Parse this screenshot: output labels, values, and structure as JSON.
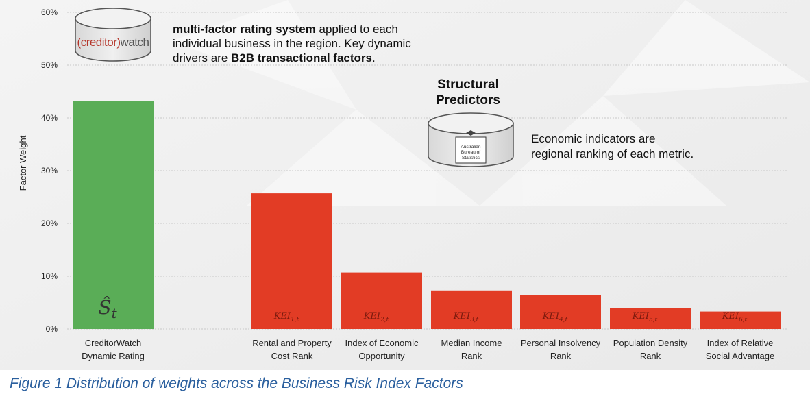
{
  "chart_data": {
    "type": "bar",
    "ylabel": "Factor Weight",
    "ylim": [
      0,
      60
    ],
    "yticks": [
      "0%",
      "10%",
      "20%",
      "30%",
      "40%",
      "50%",
      "60%"
    ],
    "grid": true,
    "categories": [
      "CreditorWatch Dynamic Rating",
      "Rental and Property Cost Rank",
      "Index of Economic Opportunity",
      "Median Income Rank",
      "Personal Insolvency Rank",
      "Population Density Rank",
      "Index of Relative Social Advantage"
    ],
    "category_lines": [
      [
        "CreditorWatch",
        "Dynamic Rating"
      ],
      [
        "Rental and Property",
        "Cost Rank"
      ],
      [
        "Index of Economic",
        "Opportunity"
      ],
      [
        "Median Income",
        "Rank"
      ],
      [
        "Personal Insolvency",
        "Rank"
      ],
      [
        "Population Density",
        "Rank"
      ],
      [
        "Index of Relative",
        "Social Advantage"
      ]
    ],
    "values": [
      43.2,
      25.7,
      10.7,
      7.3,
      6.4,
      3.9,
      3.3
    ],
    "bar_labels": [
      {
        "base": "Ŝ",
        "sub": "t"
      },
      {
        "base": "KEI",
        "sub": "1,t"
      },
      {
        "base": "KEI",
        "sub": "2,t"
      },
      {
        "base": "KEI",
        "sub": "3,t"
      },
      {
        "base": "KEI",
        "sub": "4,t"
      },
      {
        "base": "KEI",
        "sub": "5,t"
      },
      {
        "base": "KEI",
        "sub": "6,t"
      }
    ],
    "colors": [
      "#5aad57",
      "#e23c25",
      "#e23c25",
      "#e23c25",
      "#e23c25",
      "#e23c25",
      "#e23c25"
    ]
  },
  "annotations": {
    "creditorwatch_logo": {
      "left": "(creditor)",
      "right": "watch"
    },
    "creditorwatch_note": {
      "line1_bold": "multi-factor rating system",
      "line1_rest": " applied to each",
      "line2": "individual business in the region. Key dynamic",
      "line3_pre": "drivers are ",
      "line3_bold": "B2B transactional factors",
      "line3_post": "."
    },
    "structural_title_line1": "Structural",
    "structural_title_line2": "Predictors",
    "abs_logo_lines": [
      "Australian",
      "Bureau of",
      "Statistics"
    ],
    "economic_note_line1": "Economic indicators are",
    "economic_note_line2": "regional ranking of each metric."
  },
  "caption": "Figure 1 Distribution of weights across the Business Risk Index Factors",
  "colors": {
    "green": "#5aad57",
    "red": "#e23c25",
    "caption": "#2a5f9e"
  }
}
